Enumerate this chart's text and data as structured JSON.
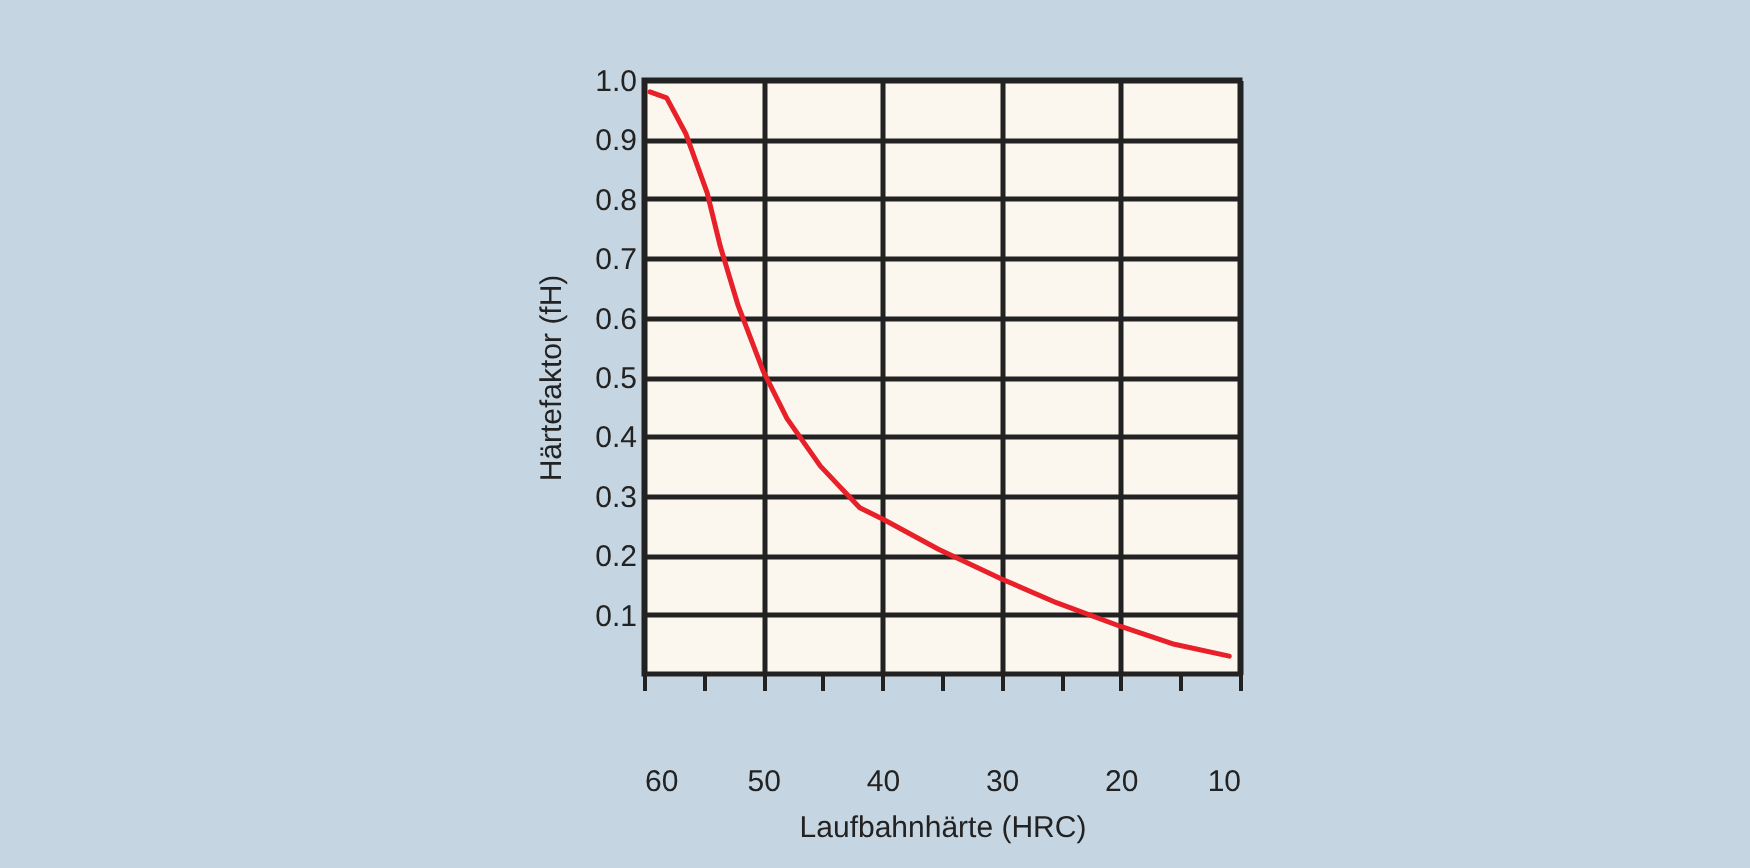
{
  "chart_data": {
    "type": "line",
    "xlabel": "Laufbahnhärte (HRC)",
    "ylabel": "Härtefaktor (fH)",
    "x": [
      59.5,
      58.1,
      56.5,
      54.7,
      53.6,
      52.1,
      50,
      48,
      45.2,
      41.9,
      39.9,
      35.3,
      30,
      25.4,
      20,
      15.5,
      10.9
    ],
    "series": [
      {
        "color": "#e8202a",
        "values": [
          0.98,
          0.97,
          0.91,
          0.81,
          0.72,
          0.62,
          0.51,
          0.43,
          0.35,
          0.28,
          0.26,
          0.21,
          0.16,
          0.12,
          0.08,
          0.05,
          0.03
        ]
      }
    ],
    "xlim": [
      60,
      10
    ],
    "xticks": [
      60,
      {
        "value": 55,
        "label": null
      },
      50,
      {
        "value": 45,
        "label": null
      },
      40,
      {
        "value": 35,
        "label": null
      },
      30,
      {
        "value": 25,
        "label": null
      },
      20,
      {
        "value": 15,
        "label": null
      },
      10
    ],
    "ylim": [
      0,
      1
    ],
    "yticks": [
      0.1,
      0.2,
      0.3,
      0.4,
      0.5,
      0.6,
      0.7,
      0.8,
      0.9,
      {
        "value": 1.0,
        "label": "1.0"
      }
    ],
    "grid": true,
    "marker": "none",
    "line_style": "solid"
  }
}
